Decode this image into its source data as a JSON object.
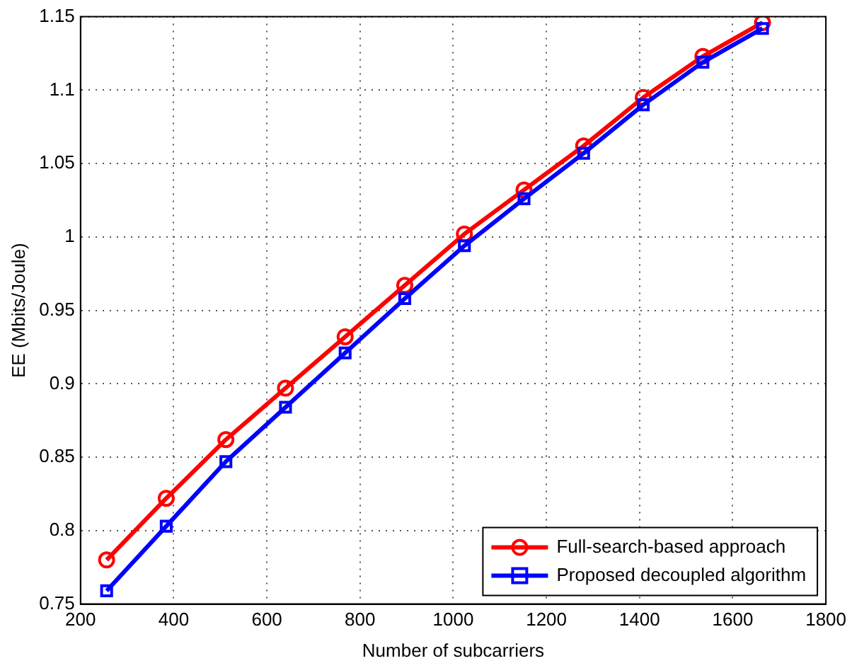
{
  "chart_data": {
    "type": "line",
    "xlabel": "Number of subcarriers",
    "ylabel": "EE (Mbits/Joule)",
    "x": [
      256,
      384,
      512,
      640,
      768,
      896,
      1024,
      1152,
      1280,
      1408,
      1536,
      1664
    ],
    "series": [
      {
        "name": "Full-search-based approach",
        "color": "#ff0000",
        "marker": "circle",
        "values": [
          0.78,
          0.822,
          0.862,
          0.897,
          0.932,
          0.967,
          1.002,
          1.032,
          1.062,
          1.095,
          1.123,
          1.146
        ]
      },
      {
        "name": "Proposed decoupled algorithm",
        "color": "#0000ff",
        "marker": "square",
        "values": [
          0.759,
          0.803,
          0.847,
          0.884,
          0.921,
          0.958,
          0.994,
          1.026,
          1.057,
          1.09,
          1.119,
          1.142
        ]
      }
    ],
    "xlim": [
      200,
      1800
    ],
    "xticks": [
      200,
      400,
      600,
      800,
      1000,
      1200,
      1400,
      1600,
      1800
    ],
    "ylim": [
      0.75,
      1.15
    ],
    "yticks": [
      0.75,
      0.8,
      0.85,
      0.9,
      0.95,
      1,
      1.05,
      1.1,
      1.15
    ],
    "grid": true,
    "line_style": "solid",
    "legend": "bottom right"
  }
}
